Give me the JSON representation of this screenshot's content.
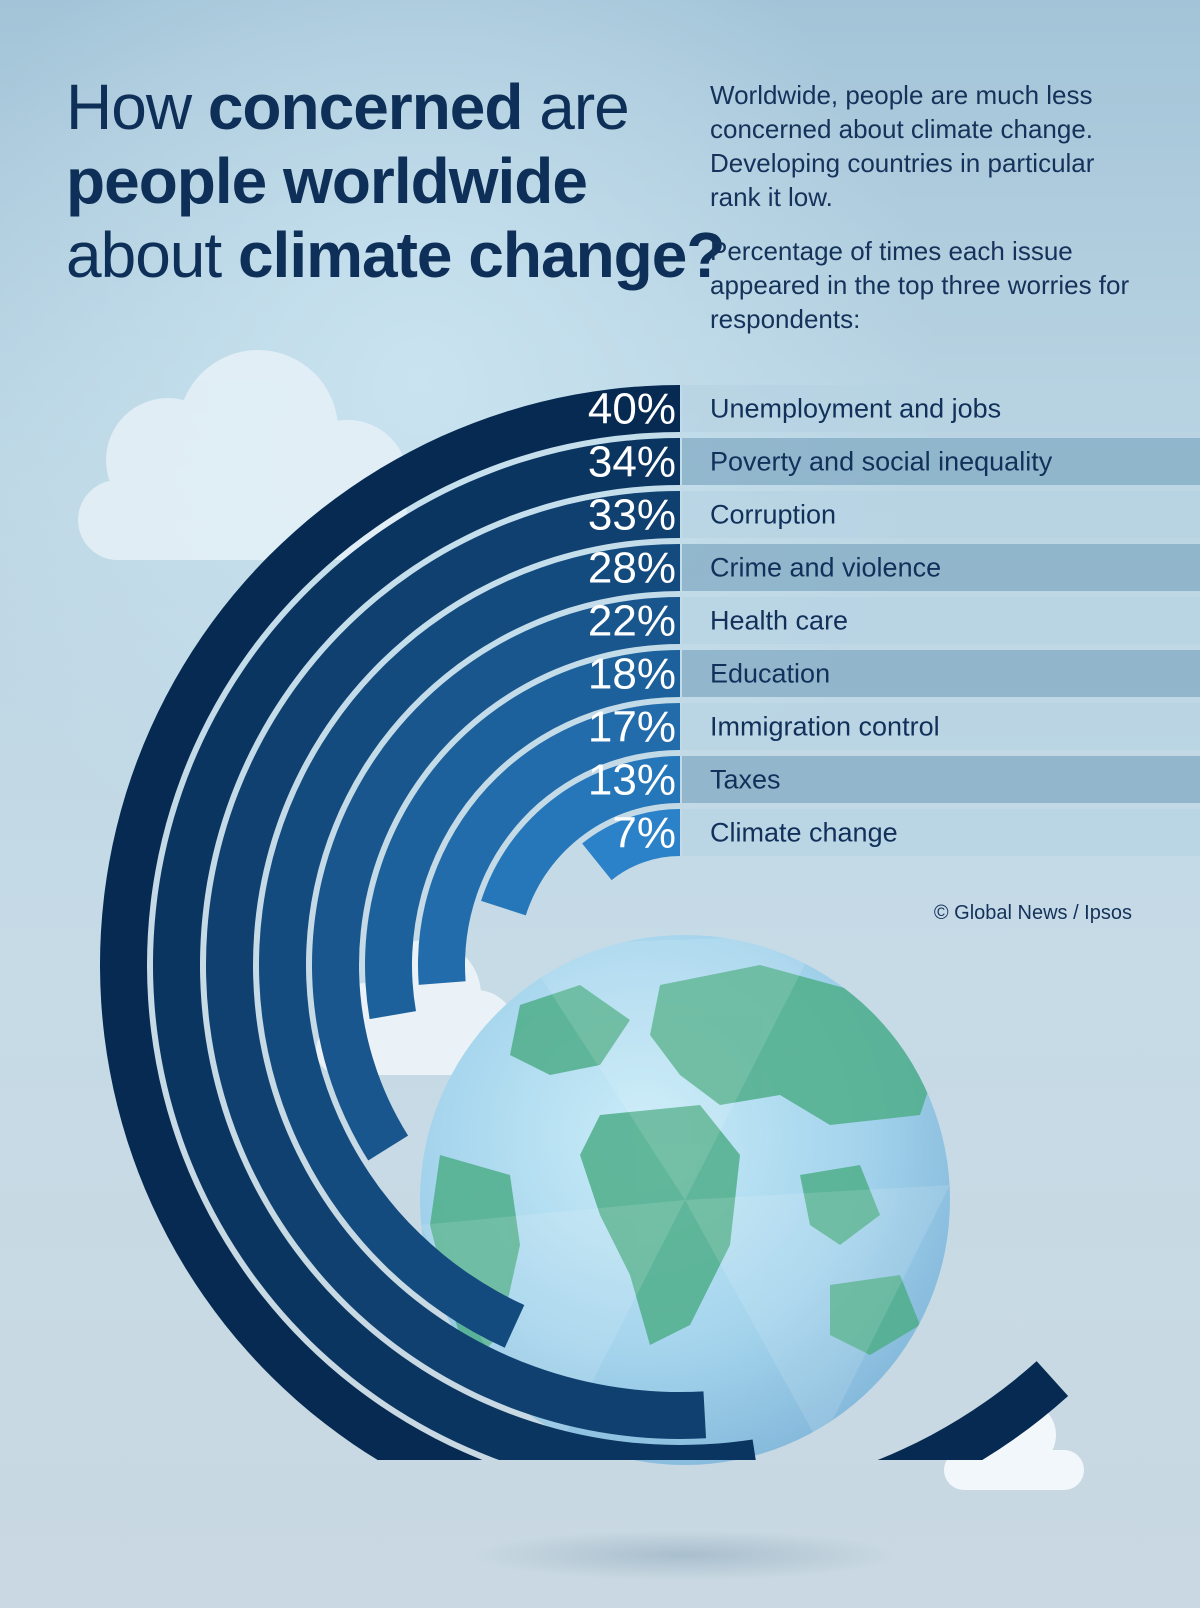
{
  "title": {
    "line1": {
      "a": "How ",
      "b": "concerned",
      "c": " are"
    },
    "line2": "people worldwide",
    "line3": {
      "a": "about ",
      "b": "climate change?"
    }
  },
  "intro": {
    "paragraph1": "Worldwide, people are much less concerned about climate change. Developing countries in particular rank it low.",
    "paragraph2": "Percentage of times each issue appeared in the top three worries for respondents:"
  },
  "source": "© Global News / Ipsos",
  "colors": {
    "darkest": "#062a52",
    "lightest": "#2b82c9",
    "label_band_dark": "#7da8c2",
    "label_band_light": "#b7d3e3"
  },
  "chart_data": {
    "type": "bar",
    "style": "radial-arc",
    "categories": [
      "Unemployment and jobs",
      "Poverty and social inequality",
      "Corruption",
      "Crime and violence",
      "Health care",
      "Education",
      "Immigration control",
      "Taxes",
      "Climate change"
    ],
    "values": [
      40,
      34,
      33,
      28,
      22,
      18,
      17,
      13,
      7
    ],
    "value_labels": [
      "40%",
      "34%",
      "33%",
      "28%",
      "22%",
      "18%",
      "17%",
      "13%",
      "7%"
    ],
    "unit": "%"
  }
}
